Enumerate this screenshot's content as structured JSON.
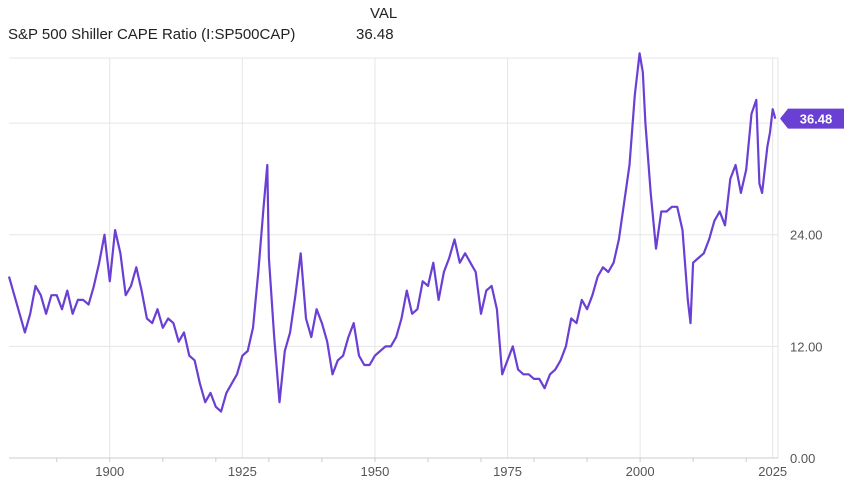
{
  "header": {
    "value_column_label": "VAL",
    "series_label": "S&P 500 Shiller CAPE Ratio (I:SP500CAP)",
    "series_value": "36.48"
  },
  "colors": {
    "line": "#6a3fd4",
    "badge": "#6a3fd4",
    "grid": "#e6e6e6",
    "axis_text": "#555555"
  },
  "chart_data": {
    "type": "line",
    "title": "",
    "xlabel": "",
    "ylabel": "",
    "xlim": [
      1881,
      2026
    ],
    "ylim": [
      0,
      43
    ],
    "y_ticks": [
      0,
      12,
      24
    ],
    "y_tick_labels": [
      "0.00",
      "12.00",
      "24.00"
    ],
    "x_ticks": [
      1900,
      1925,
      1950,
      1975,
      2000,
      2025
    ],
    "x_tick_labels": [
      "1900",
      "1925",
      "1950",
      "1975",
      "2000",
      "2025"
    ],
    "grid": true,
    "last_value_label": "36.48",
    "series": [
      {
        "name": "S&P 500 Shiller CAPE Ratio (I:SP500CAP)",
        "x": [
          1881,
          1882,
          1883,
          1884,
          1885,
          1886,
          1887,
          1888,
          1889,
          1890,
          1891,
          1892,
          1893,
          1894,
          1895,
          1896,
          1897,
          1898,
          1899,
          1900,
          1901,
          1902,
          1903,
          1904,
          1905,
          1906,
          1907,
          1908,
          1909,
          1910,
          1911,
          1912,
          1913,
          1914,
          1915,
          1916,
          1917,
          1918,
          1919,
          1920,
          1921,
          1922,
          1923,
          1924,
          1925,
          1926,
          1927,
          1928,
          1929,
          1929.7,
          1930,
          1931,
          1932,
          1933,
          1934,
          1935,
          1936,
          1937,
          1938,
          1939,
          1940,
          1941,
          1942,
          1943,
          1944,
          1945,
          1946,
          1947,
          1948,
          1949,
          1950,
          1951,
          1952,
          1953,
          1954,
          1955,
          1956,
          1957,
          1958,
          1959,
          1960,
          1961,
          1962,
          1963,
          1964,
          1965,
          1966,
          1967,
          1968,
          1969,
          1970,
          1971,
          1972,
          1973,
          1974,
          1975,
          1976,
          1977,
          1978,
          1979,
          1980,
          1981,
          1982,
          1983,
          1984,
          1985,
          1986,
          1987,
          1988,
          1989,
          1990,
          1991,
          1992,
          1993,
          1994,
          1995,
          1996,
          1997,
          1998,
          1999,
          1999.9,
          2000.5,
          2001,
          2002,
          2003,
          2004,
          2005,
          2006,
          2007,
          2008,
          2009,
          2009.5,
          2010,
          2011,
          2012,
          2013,
          2014,
          2015,
          2016,
          2017,
          2018,
          2019,
          2020,
          2021,
          2021.9,
          2022.5,
          2023,
          2024,
          2024.5,
          2025,
          2025.5
        ],
        "values": [
          19.5,
          17.5,
          15.5,
          13.5,
          15.5,
          18.5,
          17.5,
          15.5,
          17.5,
          17.5,
          16.0,
          18.0,
          15.5,
          17.0,
          17.0,
          16.5,
          18.5,
          21.0,
          24.0,
          19.0,
          24.5,
          22.0,
          17.5,
          18.5,
          20.5,
          18.0,
          15.0,
          14.5,
          16.0,
          14.0,
          15.0,
          14.5,
          12.5,
          13.5,
          11.0,
          10.5,
          8.0,
          6.0,
          7.0,
          5.5,
          5.0,
          7.0,
          8.0,
          9.0,
          11.0,
          11.5,
          14.0,
          20.0,
          27.0,
          31.5,
          21.5,
          13.0,
          6.0,
          11.5,
          13.5,
          17.5,
          22.0,
          15.0,
          13.0,
          16.0,
          14.5,
          12.5,
          9.0,
          10.5,
          11.0,
          13.0,
          14.5,
          11.0,
          10.0,
          10.0,
          11.0,
          11.5,
          12.0,
          12.0,
          13.0,
          15.0,
          18.0,
          15.5,
          16.0,
          19.0,
          18.5,
          21.0,
          17.0,
          20.0,
          21.5,
          23.5,
          21.0,
          22.0,
          21.0,
          20.0,
          15.5,
          18.0,
          18.5,
          16.0,
          9.0,
          10.5,
          12.0,
          9.5,
          9.0,
          9.0,
          8.5,
          8.5,
          7.5,
          9.0,
          9.5,
          10.5,
          12.0,
          15.0,
          14.5,
          17.0,
          16.0,
          17.5,
          19.5,
          20.5,
          20.0,
          21.0,
          23.5,
          27.5,
          31.5,
          39.0,
          43.5,
          41.5,
          36.0,
          28.5,
          22.5,
          26.5,
          26.5,
          27.0,
          27.0,
          24.5,
          17.0,
          14.5,
          21.0,
          21.5,
          22.0,
          23.5,
          25.5,
          26.5,
          25.0,
          30.0,
          31.5,
          28.5,
          31.0,
          37.0,
          38.5,
          29.5,
          28.5,
          33.5,
          35.0,
          37.5,
          36.48
        ]
      }
    ]
  }
}
